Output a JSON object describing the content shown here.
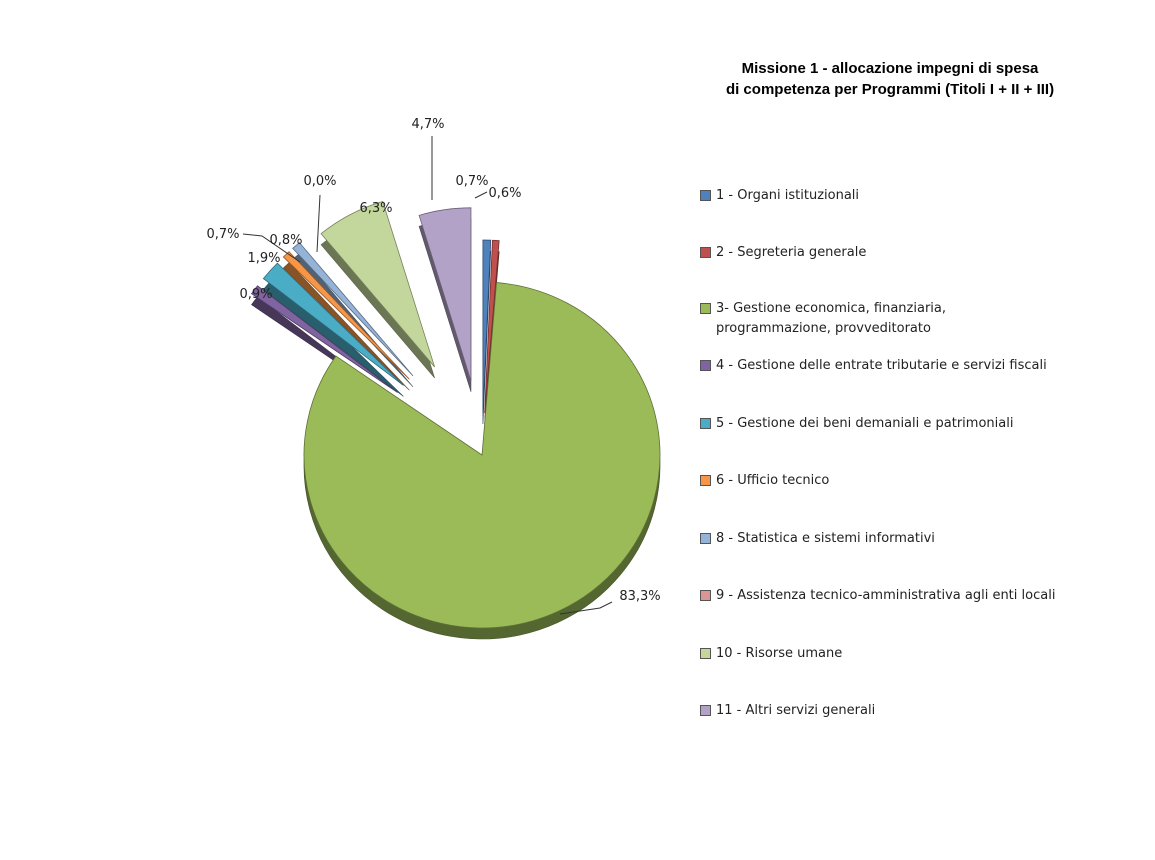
{
  "chart_data": {
    "type": "pie",
    "title": "Missione 1 - allocazione impegni di spesa di competenza per Programmi  (Titoli I + II + III)",
    "title_lines": [
      "Missione 1 - allocazione impegni di spesa",
      "di competenza per Programmi  (Titoli I + II + III)"
    ],
    "legend_position": "right",
    "slices": [
      {
        "label": "1 - Organi istituzionali",
        "value": 0.7,
        "value_label": "0,7%",
        "color": "#4f81bd"
      },
      {
        "label": "2 - Segreteria generale",
        "value": 0.6,
        "value_label": "0,6%",
        "color": "#c0504d"
      },
      {
        "label": "3- Gestione economica, finanziaria, programmazione, provveditorato",
        "value": 83.3,
        "value_label": "83,3%",
        "color": "#9bbb59"
      },
      {
        "label": "4 - Gestione delle entrate tributarie e servizi fiscali",
        "value": 0.9,
        "value_label": "0,9%",
        "color": "#8064a2"
      },
      {
        "label": "5 - Gestione dei beni demaniali e patrimoniali",
        "value": 1.9,
        "value_label": "1,9%",
        "color": "#4bacc6"
      },
      {
        "label": "6 - Ufficio tecnico",
        "value": 0.7,
        "value_label": "0,7%",
        "color": "#f79646"
      },
      {
        "label": "8 - Statistica e sistemi informativi",
        "value": 0.8,
        "value_label": "0,8%",
        "color": "#95b3d7"
      },
      {
        "label": "9 - Assistenza tecnico-amministrativa agli enti locali",
        "value": 0.0,
        "value_label": "0,0%",
        "color": "#d99694"
      },
      {
        "label": "10 - Risorse umane",
        "value": 6.3,
        "value_label": "6,3%",
        "color": "#c3d69b"
      },
      {
        "label": "11 - Altri servizi generali",
        "value": 4.7,
        "value_label": "4,7%",
        "color": "#b3a2c7"
      }
    ]
  }
}
